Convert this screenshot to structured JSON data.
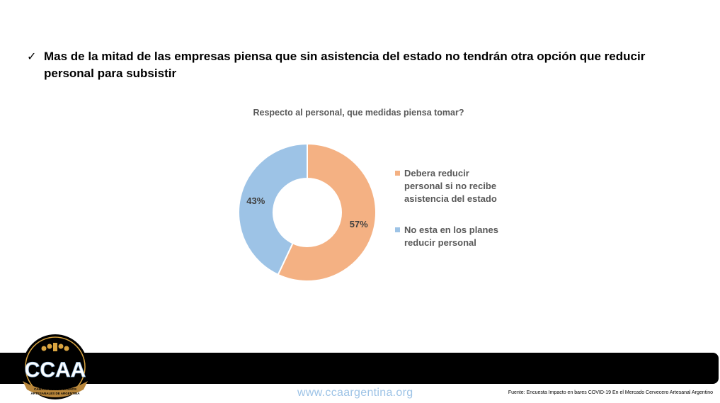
{
  "headline": {
    "check_icon": "✓",
    "text": "Mas de la mitad de las empresas piensa que sin asistencia del estado no tendrán otra opción que reducir personal para subsistir"
  },
  "chart_data": {
    "type": "pie",
    "donut": true,
    "title": "Respecto al personal, que medidas piensa tomar?",
    "legend_position": "right",
    "slices": [
      {
        "label": "Debera reducir personal si no recibe asistencia del estado",
        "value": 57,
        "display": "57%",
        "color": "#f4b183"
      },
      {
        "label": "No esta en los planes reducir personal",
        "value": 43,
        "display": "43%",
        "color": "#9dc3e6"
      }
    ]
  },
  "footer": {
    "logo": {
      "name": "ccaa-logo",
      "text": "CCAA",
      "subtext": "CAMARA DE CERVECEROS ARTESANALES DE ARGENTINA"
    },
    "website": "www.ccaargentina.org",
    "source": "Fuente: Encuesta Impacto en bares COVID-19 En el Mercado Cervecero Artesanal Argentino"
  }
}
